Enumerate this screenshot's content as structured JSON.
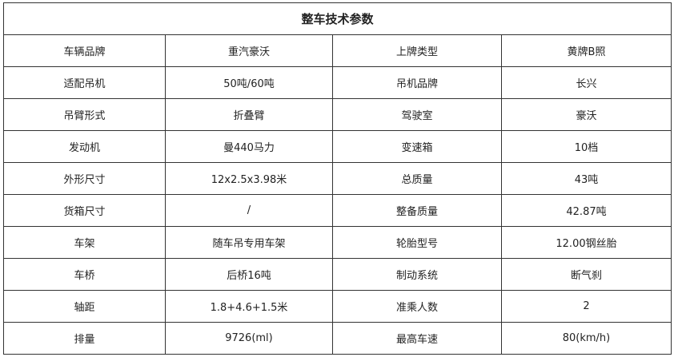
{
  "title": "整车技术参数",
  "rows": [
    [
      "车辆品牌",
      "重汽豪沃",
      "上牌类型",
      "黄牌B照"
    ],
    [
      "适配吊机",
      "50吨/60吨",
      "吊机品牌",
      "长兴"
    ],
    [
      "吊臂形式",
      "折叠臂",
      "驾驶室",
      "豪沃"
    ],
    [
      "发动机",
      "曼440马力",
      "变速箱",
      "10档"
    ],
    [
      "外形尺寸",
      "12x2.5x3.98米",
      "总质量",
      "43吨"
    ],
    [
      "货箱尺寸",
      "/",
      "整备质量",
      "42.87吨"
    ],
    [
      "车架",
      "随车吊专用车架",
      "轮胎型号",
      "12.00钢丝胎"
    ],
    [
      "车桥",
      "后桥16吨",
      "制动系统",
      "断气刹"
    ],
    [
      "轴距",
      "1.8+4.6+1.5米",
      "准乘人数",
      "2"
    ],
    [
      "排量",
      "9726(ml)",
      "最高车速",
      "80(km/h)"
    ]
  ]
}
